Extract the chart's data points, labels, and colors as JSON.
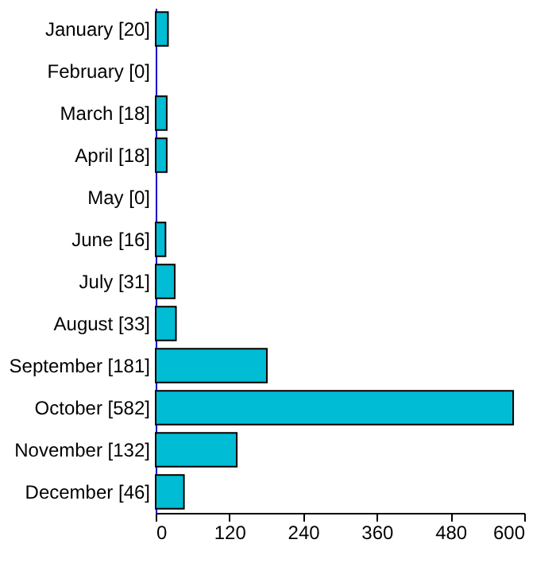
{
  "chart_data": {
    "type": "bar",
    "orientation": "horizontal",
    "categories": [
      "January [20]",
      "February [0]",
      "March [18]",
      "April [18]",
      "May [0]",
      "June [16]",
      "July [31]",
      "August [33]",
      "September [181]",
      "October [582]",
      "November [132]",
      "December [46]"
    ],
    "values": [
      20,
      0,
      18,
      18,
      0,
      16,
      31,
      33,
      181,
      582,
      132,
      46
    ],
    "color": "#00bcd4",
    "xlim": [
      0,
      600
    ],
    "xticks": [
      0,
      120,
      240,
      360,
      480,
      600
    ],
    "grid": false
  }
}
